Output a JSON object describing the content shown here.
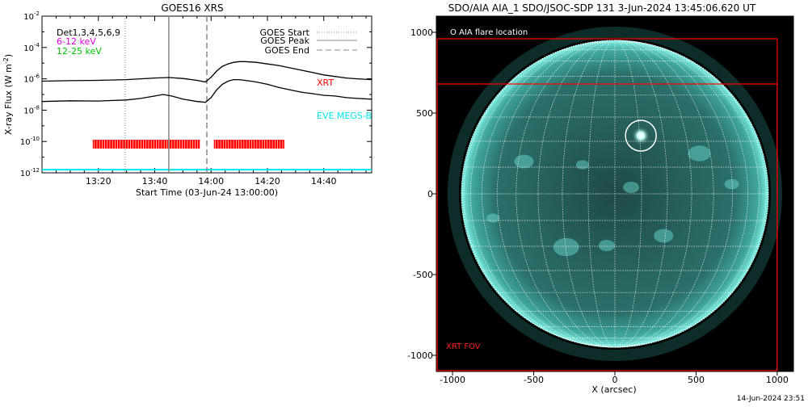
{
  "footer_timestamp": "14-Jun-2024 23:51",
  "chart_data": [
    {
      "type": "line",
      "title": "GOES16 XRS",
      "xlabel": "Start Time (03-Jun-24 13:00:00)",
      "ylabel": "X-ray Flux (W m",
      "ylabel_sup": "-2",
      "ylabel_close": ")",
      "x_unit": "minutes after 13:00",
      "xlim": [
        0,
        117
      ],
      "ylim_log10": [
        -12,
        -2
      ],
      "y_scale": "log",
      "x_ticks": [
        {
          "x": 20,
          "label": "13:20"
        },
        {
          "x": 40,
          "label": "13:40"
        },
        {
          "x": 60,
          "label": "14:00"
        },
        {
          "x": 80,
          "label": "14:20"
        },
        {
          "x": 100,
          "label": "14:40"
        }
      ],
      "y_ticks": [
        {
          "exp": -2,
          "base": "10",
          "sup": "-2"
        },
        {
          "exp": -4,
          "base": "10",
          "sup": "-4"
        },
        {
          "exp": -6,
          "base": "10",
          "sup": "-6"
        },
        {
          "exp": -8,
          "base": "10",
          "sup": "-8"
        },
        {
          "exp": -10,
          "base": "10",
          "sup": "-10"
        },
        {
          "exp": -12,
          "base": "10",
          "sup": "-12"
        }
      ],
      "annotations": {
        "dets": "Det1,3,4,5,6,9",
        "band_low": "6-12 keV",
        "band_high": "12-25 keV",
        "xrt_label": "XRT",
        "eve_label": "EVE MEGS-B"
      },
      "legend": {
        "position": "top-right",
        "entries": [
          "GOES Start",
          "GOES Peak",
          "GOES End"
        ]
      },
      "markers": {
        "goes_start": 29.5,
        "goes_peak": 45,
        "goes_end": 58.5
      },
      "series": [
        {
          "name": "6-12 keV",
          "color": "#000000",
          "x": [
            0,
            10,
            20,
            30,
            40,
            45,
            50,
            55,
            58,
            60,
            62,
            64,
            66,
            68,
            70,
            72,
            76,
            80,
            84,
            88,
            92,
            96,
            100,
            104,
            108,
            112,
            117
          ],
          "log10_y": [
            -6.15,
            -6.12,
            -6.1,
            -6.05,
            -5.95,
            -5.92,
            -5.98,
            -6.1,
            -6.2,
            -5.9,
            -5.5,
            -5.2,
            -5.05,
            -4.95,
            -4.9,
            -4.9,
            -4.95,
            -5.05,
            -5.15,
            -5.3,
            -5.45,
            -5.6,
            -5.75,
            -5.85,
            -5.95,
            -6.0,
            -6.05
          ]
        },
        {
          "name": "12-25 keV",
          "color": "#000000",
          "x": [
            0,
            10,
            20,
            30,
            35,
            40,
            43,
            46,
            50,
            55,
            58,
            60,
            62,
            64,
            66,
            68,
            70,
            72,
            76,
            80,
            84,
            88,
            92,
            96,
            100,
            104,
            108,
            112,
            117
          ],
          "log10_y": [
            -7.45,
            -7.4,
            -7.42,
            -7.35,
            -7.25,
            -7.1,
            -7.0,
            -7.1,
            -7.3,
            -7.45,
            -7.5,
            -7.2,
            -6.7,
            -6.35,
            -6.15,
            -6.05,
            -6.05,
            -6.1,
            -6.2,
            -6.35,
            -6.55,
            -6.7,
            -6.85,
            -6.95,
            -7.05,
            -7.1,
            -7.2,
            -7.25,
            -7.3
          ]
        }
      ],
      "xrt_bars": [
        {
          "from": 18,
          "to": 56
        },
        {
          "from": 61,
          "to": 86
        }
      ],
      "eve_level_log10": -11.8
    },
    {
      "type": "heatmap",
      "title": "SDO/AIA AIA_1 SDO/JSOC-SDP 131  3-Jun-2024 13:45:06.620 UT",
      "xlabel": "X (arcsec)",
      "ylabel": "",
      "xlim": [
        -1100,
        1100
      ],
      "ylim": [
        -1100,
        1100
      ],
      "x_ticks": [
        -1000,
        -500,
        0,
        500,
        1000
      ],
      "y_ticks": [
        -1000,
        -500,
        0,
        500,
        1000
      ],
      "x_tick_labels": [
        "-1000",
        "-500",
        "0",
        "500",
        "1000"
      ],
      "y_tick_labels": [
        "-1000",
        "-500",
        "0",
        "500",
        "1000"
      ],
      "disk_radius_arcsec": 946,
      "flare_location": {
        "x": 160,
        "y": 360,
        "label": "AIA flare location"
      },
      "fov_boxes": [
        {
          "x0": -1100,
          "x1": 1000,
          "y0": -1100,
          "y1": 960
        },
        {
          "x0": -1100,
          "x1": 1000,
          "y0": -1100,
          "y1": 680
        }
      ],
      "fov_label": "XRT FOV",
      "colors": {
        "disk": "#2f8f8a",
        "limb": "#6be0d6",
        "box": "#ff0000",
        "grid": "#ffffff"
      }
    }
  ]
}
